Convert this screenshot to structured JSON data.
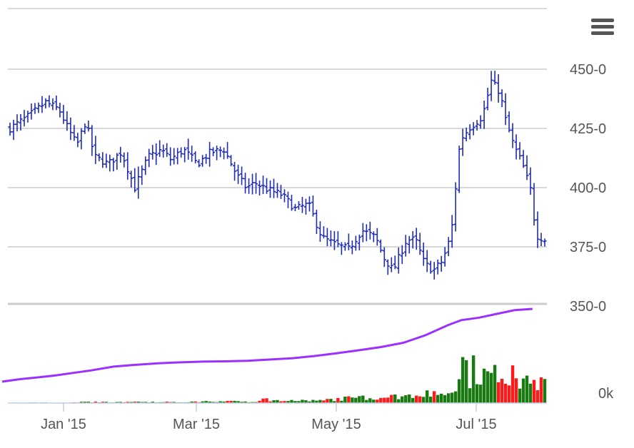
{
  "chart_data": {
    "type": "ohlc",
    "price_axis": {
      "ticks": [
        350,
        375,
        400,
        425,
        450
      ],
      "tick_labels": [
        "350-0",
        "375-0",
        "400-0",
        "425-0",
        "450-0"
      ],
      "ylim": [
        350,
        460
      ]
    },
    "volume_axis": {
      "tick_labels": [
        "0k"
      ]
    },
    "x_axis": {
      "tick_labels": [
        "Jan '15",
        "Mar '15",
        "May '15",
        "Jul '15"
      ]
    },
    "grid": true,
    "colors": {
      "ohlc": "#1e2bb5",
      "volume_up": "#1a7a12",
      "volume_down": "#ff1a1a",
      "moving_average": "#9b30ff",
      "grid": "#cccccc",
      "axis_text": "#555555"
    },
    "price_path": [
      [
        0,
        425
      ],
      [
        4,
        430
      ],
      [
        8,
        436
      ],
      [
        11,
        433
      ],
      [
        13,
        425
      ],
      [
        15,
        418
      ],
      [
        17,
        428
      ],
      [
        19,
        413
      ],
      [
        22,
        410
      ],
      [
        25,
        415
      ],
      [
        28,
        400
      ],
      [
        31,
        413
      ],
      [
        34,
        416
      ],
      [
        36,
        412
      ],
      [
        39,
        416
      ],
      [
        42,
        410
      ],
      [
        45,
        415
      ],
      [
        48,
        416
      ],
      [
        51,
        405
      ],
      [
        53,
        400
      ],
      [
        55,
        402
      ],
      [
        58,
        399
      ],
      [
        61,
        397
      ],
      [
        64,
        391
      ],
      [
        67,
        393
      ],
      [
        70,
        379
      ],
      [
        73,
        376
      ],
      [
        76,
        374
      ],
      [
        79,
        382
      ],
      [
        82,
        379
      ],
      [
        84,
        370
      ],
      [
        86,
        365
      ],
      [
        89,
        378
      ],
      [
        91,
        378
      ],
      [
        93,
        368
      ],
      [
        95,
        365
      ],
      [
        97,
        369
      ],
      [
        99,
        380
      ],
      [
        101,
        420
      ],
      [
        103,
        425
      ],
      [
        106,
        430
      ],
      [
        108,
        445
      ],
      [
        110,
        440
      ],
      [
        111,
        430
      ],
      [
        113,
        418
      ],
      [
        115,
        410
      ],
      [
        117,
        398
      ],
      [
        118,
        380
      ],
      [
        120,
        378
      ]
    ],
    "moving_average": [
      [
        0,
        339
      ],
      [
        4,
        340
      ],
      [
        8,
        340.7
      ],
      [
        12,
        341.5
      ],
      [
        16,
        342.5
      ],
      [
        20,
        343.5
      ],
      [
        25,
        345
      ],
      [
        30,
        345.7
      ],
      [
        35,
        346.3
      ],
      [
        40,
        346.7
      ],
      [
        45,
        347
      ],
      [
        50,
        347.1
      ],
      [
        55,
        347.3
      ],
      [
        60,
        347.8
      ],
      [
        65,
        348.3
      ],
      [
        70,
        349.2
      ],
      [
        75,
        350.3
      ],
      [
        80,
        351.5
      ],
      [
        85,
        352.8
      ],
      [
        90,
        354.5
      ],
      [
        95,
        357.5
      ],
      [
        100,
        361.5
      ],
      [
        103,
        363.5
      ],
      [
        107,
        364.5
      ],
      [
        111,
        366
      ],
      [
        115,
        367.5
      ],
      [
        119,
        368
      ]
    ],
    "volume_path": [
      [
        0,
        0.6
      ],
      [
        14,
        0.6
      ],
      [
        15,
        1.5
      ],
      [
        40,
        1.5
      ],
      [
        41,
        2.5
      ],
      [
        55,
        2.5
      ],
      [
        56,
        3.5
      ],
      [
        57,
        11
      ],
      [
        58,
        3.5
      ],
      [
        70,
        3.5
      ],
      [
        71,
        5
      ],
      [
        75,
        7
      ],
      [
        80,
        8.5
      ],
      [
        85,
        9.5
      ],
      [
        90,
        12
      ],
      [
        93,
        14
      ],
      [
        96,
        16
      ],
      [
        98,
        15
      ],
      [
        99,
        20
      ],
      [
        100,
        35
      ],
      [
        101,
        55
      ],
      [
        102,
        70
      ],
      [
        103,
        40
      ],
      [
        104,
        52
      ],
      [
        106,
        45
      ],
      [
        108,
        40
      ],
      [
        110,
        44
      ],
      [
        113,
        40
      ],
      [
        116,
        30
      ],
      [
        117,
        50
      ],
      [
        118,
        30
      ],
      [
        120,
        32
      ]
    ],
    "volume_max": 70,
    "n_days": 151
  },
  "menu": {
    "icon": "hamburger-menu-icon"
  }
}
